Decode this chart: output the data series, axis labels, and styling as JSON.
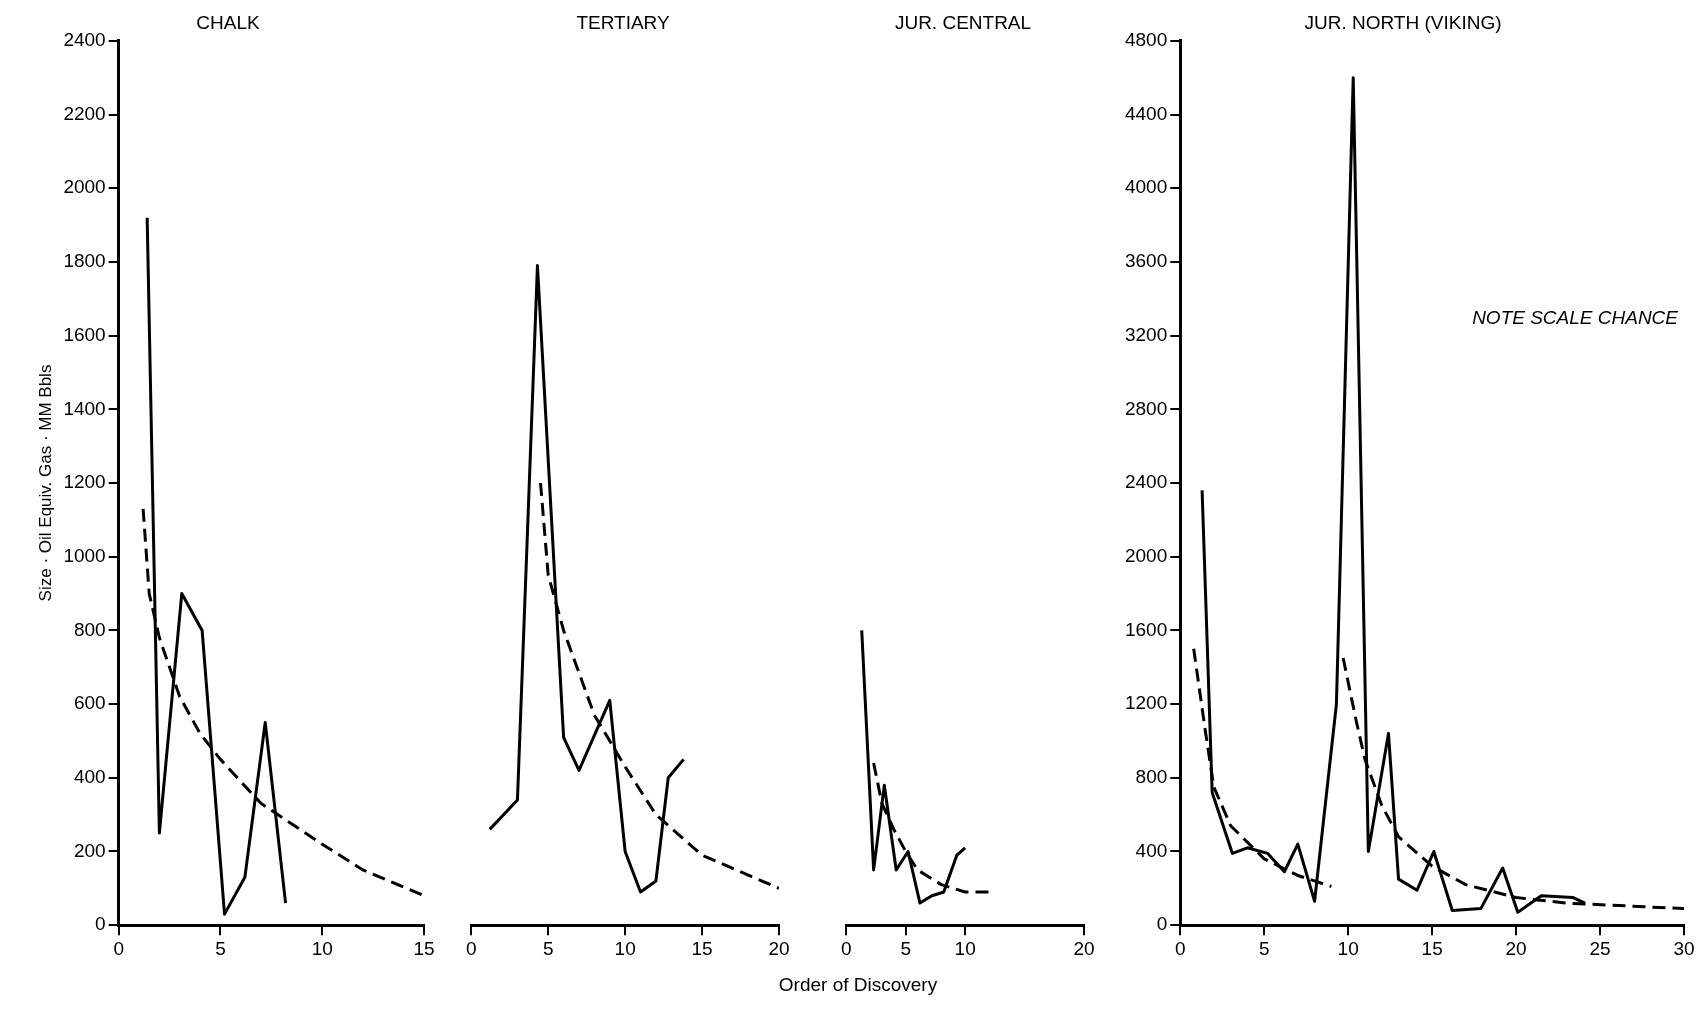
{
  "chart_data": [
    {
      "type": "line",
      "title": "CHALK",
      "ylabel": "Size · Oil Equiv. Gas · MM Bbls",
      "xlim": [
        0,
        15
      ],
      "xticks": [
        0,
        5,
        10,
        15
      ],
      "ylim": [
        0,
        2400
      ],
      "yticks": [
        0,
        200,
        400,
        600,
        800,
        1000,
        1200,
        1400,
        1600,
        1800,
        2000,
        2200,
        2400
      ],
      "series": [
        {
          "color": "#000000",
          "line_style": "solid",
          "x": [
            1.4,
            2,
            3.1,
            4.1,
            5.2,
            6.2,
            7.2,
            8.2
          ],
          "values": [
            1920,
            250,
            900,
            800,
            30,
            130,
            550,
            60
          ]
        },
        {
          "color": "#000000",
          "line_style": "dashed",
          "x": [
            1.2,
            1.5,
            2,
            3,
            4,
            5,
            7,
            10,
            12,
            15
          ],
          "values": [
            1130,
            900,
            780,
            620,
            520,
            450,
            330,
            220,
            150,
            80
          ]
        }
      ]
    },
    {
      "type": "line",
      "title": "TERTIARY",
      "tick_labels": "x",
      "xlim": [
        0,
        20
      ],
      "xticks": [
        0,
        5,
        10,
        15,
        20
      ],
      "ylim": [
        0,
        2400
      ],
      "series": [
        {
          "color": "#000000",
          "line_style": "solid",
          "x": [
            1.2,
            3,
            4.3,
            6,
            7,
            9,
            10,
            11,
            12,
            12.8,
            13.8
          ],
          "values": [
            260,
            340,
            1790,
            510,
            420,
            610,
            200,
            90,
            120,
            400,
            450
          ]
        },
        {
          "color": "#000000",
          "line_style": "dashed",
          "x": [
            4.5,
            5,
            6,
            8,
            10,
            12,
            15,
            20
          ],
          "values": [
            1200,
            950,
            800,
            570,
            430,
            300,
            190,
            100
          ]
        }
      ]
    },
    {
      "type": "line",
      "title": "JUR. CENTRAL",
      "xlabel": "Order of Discovery",
      "tick_labels": "x",
      "xlim": [
        0,
        20
      ],
      "xticks": [
        0,
        5,
        10,
        20
      ],
      "ylim": [
        0,
        2400
      ],
      "series": [
        {
          "color": "#000000",
          "line_style": "solid",
          "x": [
            1.3,
            2.3,
            3.2,
            4.2,
            5.2,
            6.2,
            7.2,
            8.2,
            9.3,
            10
          ],
          "values": [
            800,
            150,
            380,
            150,
            200,
            60,
            80,
            90,
            190,
            210
          ]
        },
        {
          "color": "#000000",
          "line_style": "dashed",
          "x": [
            2.3,
            3,
            4,
            5,
            6,
            8,
            10,
            12
          ],
          "values": [
            440,
            330,
            260,
            200,
            150,
            110,
            90,
            90
          ]
        }
      ]
    },
    {
      "type": "line",
      "title": "JUR. NORTH (VIKING)",
      "annotations": [
        "NOTE SCALE CHANCE"
      ],
      "xlim": [
        0,
        30
      ],
      "xticks": [
        0,
        5,
        10,
        15,
        20,
        25,
        30
      ],
      "ylim": [
        0,
        4800
      ],
      "yticks": [
        0,
        400,
        800,
        1200,
        1600,
        2000,
        2400,
        2800,
        3200,
        3600,
        4000,
        4400,
        4800
      ],
      "series": [
        {
          "color": "#000000",
          "line_style": "solid",
          "x": [
            1.3,
            1.9,
            3.1,
            4,
            5.2,
            6.2,
            7,
            8,
            9.3,
            10.3,
            11.2,
            12.4,
            13,
            14.1,
            15.1,
            16.2,
            17.9,
            19.2,
            20.1,
            21.5,
            23.4,
            24.1
          ],
          "values": [
            2360,
            720,
            390,
            420,
            390,
            290,
            440,
            130,
            1200,
            4600,
            400,
            1040,
            250,
            190,
            400,
            80,
            90,
            310,
            70,
            160,
            150,
            120
          ]
        },
        {
          "color": "#000000",
          "line_style": "dashed",
          "x": [
            0.8,
            1.5,
            2,
            3,
            5,
            7,
            9
          ],
          "values": [
            1500,
            1050,
            750,
            540,
            360,
            270,
            210
          ]
        },
        {
          "color": "#000000",
          "line_style": "dashed",
          "x": [
            9.7,
            10.5,
            11,
            12,
            13,
            15,
            17,
            20,
            23,
            30
          ],
          "values": [
            1450,
            1100,
            900,
            650,
            480,
            320,
            220,
            150,
            120,
            90
          ]
        }
      ]
    }
  ]
}
